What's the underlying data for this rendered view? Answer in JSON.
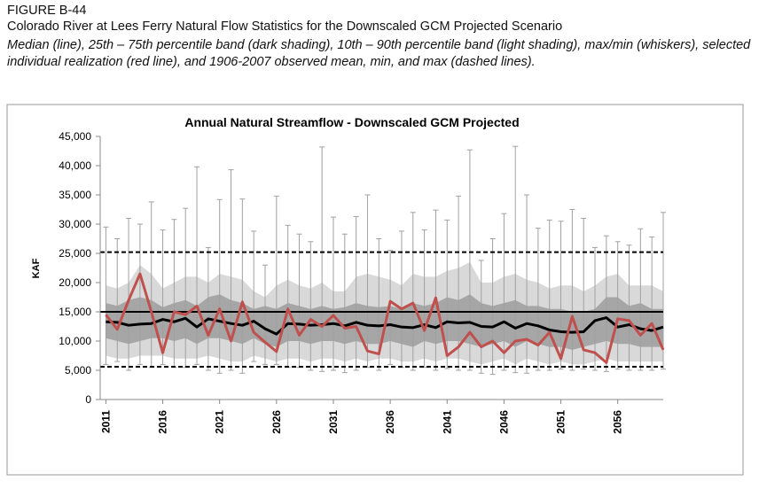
{
  "figure_label": "FIGURE B-44",
  "caption_title": "Colorado River at Lees Ferry Natural Flow Statistics for the Downscaled GCM Projected Scenario",
  "caption_text": "Median (line), 25th – 75th percentile band (dark shading), 10th – 90th percentile band (light shading), max/min (whiskers), selected individual realization (red line), and 1906-2007 observed mean, min, and max (dashed lines).",
  "chart_data": {
    "type": "line",
    "title": "Annual Natural Streamflow - Downscaled GCM Projected",
    "y_label": "KAF",
    "x": [
      2011,
      2012,
      2013,
      2014,
      2015,
      2016,
      2017,
      2018,
      2019,
      2020,
      2021,
      2022,
      2023,
      2024,
      2025,
      2026,
      2027,
      2028,
      2029,
      2030,
      2031,
      2032,
      2033,
      2034,
      2035,
      2036,
      2037,
      2038,
      2039,
      2040,
      2041,
      2042,
      2043,
      2044,
      2045,
      2046,
      2047,
      2048,
      2049,
      2050,
      2051,
      2052,
      2053,
      2054,
      2055,
      2056,
      2057,
      2058,
      2059,
      2060
    ],
    "xlim": [
      2010.5,
      2060
    ],
    "xticks": [
      2011,
      2016,
      2021,
      2026,
      2031,
      2036,
      2041,
      2046,
      2051,
      2056
    ],
    "ylim": [
      0,
      45000
    ],
    "yticks": [
      {
        "value": 0,
        "label": "0"
      },
      {
        "value": 5000,
        "label": "5,000"
      },
      {
        "value": 10000,
        "label": "10,000"
      },
      {
        "value": 15000,
        "label": "15,000"
      },
      {
        "value": 20000,
        "label": "20,000"
      },
      {
        "value": 25000,
        "label": "25,000"
      },
      {
        "value": 30000,
        "label": "30,000"
      },
      {
        "value": 35000,
        "label": "35,000"
      },
      {
        "value": 40000,
        "label": "40,000"
      },
      {
        "value": 45000,
        "label": "45,000"
      }
    ],
    "grid": false,
    "median": [
      13300,
      13200,
      12700,
      12900,
      13000,
      13700,
      13300,
      13900,
      12400,
      13800,
      13400,
      13000,
      12700,
      13400,
      12100,
      11200,
      13000,
      12900,
      12700,
      12800,
      13000,
      12600,
      13200,
      12700,
      12600,
      12800,
      12400,
      12300,
      12800,
      12300,
      13300,
      13100,
      13200,
      12500,
      12400,
      13300,
      12200,
      13000,
      12600,
      11900,
      11600,
      11500,
      11600,
      13500,
      14000,
      12400,
      12800,
      12100,
      11800,
      12400
    ],
    "p25": [
      10500,
      10000,
      9500,
      10000,
      10500,
      10500,
      10000,
      10500,
      9500,
      10500,
      10500,
      10000,
      9500,
      10500,
      9500,
      9000,
      10000,
      10000,
      9500,
      10000,
      10000,
      9500,
      10000,
      9500,
      9500,
      10000,
      9500,
      9000,
      10000,
      9500,
      10000,
      10000,
      9500,
      9000,
      9500,
      10000,
      9000,
      10000,
      9500,
      9000,
      9000,
      8500,
      9000,
      9500,
      10000,
      9500,
      9500,
      9000,
      9000,
      9000
    ],
    "p75": [
      16500,
      16000,
      17000,
      17500,
      17000,
      15800,
      16500,
      17000,
      16000,
      17500,
      18000,
      17000,
      16500,
      15500,
      16000,
      15500,
      16500,
      16000,
      15500,
      16000,
      15500,
      15800,
      16500,
      16000,
      15800,
      16000,
      15500,
      16500,
      16000,
      16500,
      17500,
      17000,
      18000,
      16500,
      16000,
      16500,
      17000,
      16000,
      16000,
      15500,
      15500,
      15000,
      15000,
      15500,
      17500,
      17500,
      16000,
      16500,
      15500,
      15500
    ],
    "p10": [
      7500,
      7000,
      7000,
      7500,
      7500,
      7500,
      7000,
      7000,
      7000,
      7500,
      7000,
      6500,
      6500,
      7500,
      7000,
      6500,
      7000,
      7000,
      6500,
      7000,
      7000,
      6500,
      7000,
      6500,
      7000,
      7000,
      6500,
      6500,
      7000,
      6500,
      7000,
      7000,
      6500,
      6000,
      6500,
      7000,
      6000,
      7000,
      6500,
      6000,
      6500,
      6000,
      6000,
      6500,
      7000,
      6500,
      6500,
      6500,
      6500,
      6500
    ],
    "p90": [
      19500,
      19000,
      20000,
      23000,
      21500,
      19000,
      20000,
      21000,
      21000,
      20000,
      21500,
      21000,
      20500,
      18500,
      17500,
      19500,
      20500,
      19500,
      19000,
      20000,
      18500,
      18500,
      21000,
      21500,
      21000,
      20500,
      19500,
      21500,
      21000,
      21000,
      22000,
      22500,
      23500,
      20000,
      20000,
      21000,
      21500,
      20500,
      20000,
      19000,
      19500,
      19500,
      18500,
      19500,
      21000,
      21500,
      19500,
      19500,
      19500,
      18500
    ],
    "min": [
      6000,
      6500,
      5000,
      6000,
      5500,
      6000,
      5500,
      5500,
      6000,
      5000,
      4500,
      5000,
      4500,
      6500,
      6000,
      6000,
      5500,
      5500,
      5000,
      4800,
      5000,
      4600,
      5000,
      5500,
      5000,
      6000,
      5500,
      5000,
      5500,
      5000,
      5300,
      5000,
      5000,
      4500,
      4300,
      5000,
      4600,
      4500,
      5000,
      5000,
      5200,
      5000,
      5200,
      5000,
      4800,
      5200,
      5000,
      5000,
      5000,
      5200
    ],
    "max": [
      29500,
      27500,
      31000,
      30000,
      33800,
      29000,
      30800,
      32700,
      39800,
      26000,
      34200,
      39300,
      34300,
      28800,
      23000,
      34800,
      29800,
      28300,
      27000,
      43200,
      31200,
      28300,
      31300,
      35000,
      27500,
      25500,
      28800,
      32000,
      29000,
      32400,
      30700,
      34800,
      42700,
      23800,
      27500,
      31800,
      43300,
      35000,
      29300,
      30700,
      30500,
      32500,
      31000,
      26000,
      28000,
      27000,
      26400,
      29200,
      27800,
      32000
    ],
    "realization": [
      14500,
      12000,
      17000,
      21500,
      15000,
      8000,
      15000,
      14500,
      16000,
      11000,
      15500,
      10000,
      16700,
      11500,
      9800,
      8200,
      15500,
      11000,
      13700,
      12500,
      14400,
      12200,
      12500,
      8300,
      7800,
      16800,
      15500,
      16500,
      11800,
      17400,
      7500,
      9000,
      11500,
      9000,
      10000,
      8000,
      10000,
      10300,
      9300,
      11500,
      7000,
      14200,
      8500,
      8000,
      6300,
      13800,
      13500,
      11000,
      13000,
      8500
    ],
    "observed_mean": 15000,
    "observed_min": 5600,
    "observed_max": 25200,
    "colors": {
      "median": "#000000",
      "realization": "#c0504d",
      "outer_band": "#d9d9d9",
      "inner_band": "#a6a6a6",
      "whisker": "#a0a0a0",
      "observed": "#000000"
    }
  }
}
